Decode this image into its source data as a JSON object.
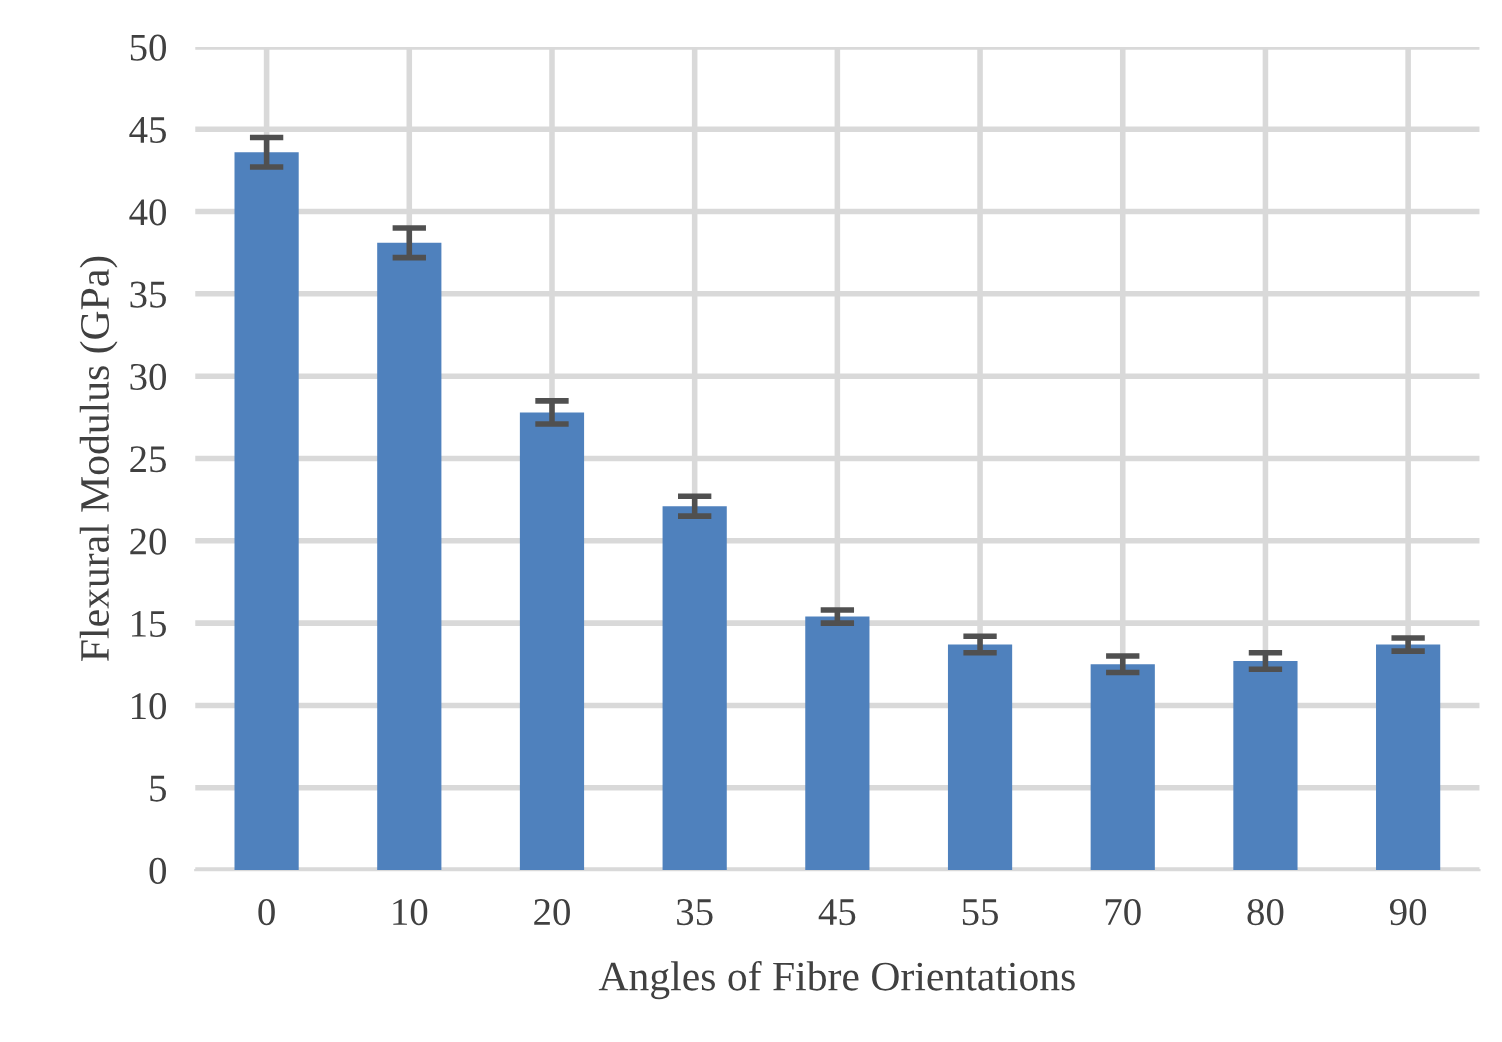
{
  "chart_data": {
    "type": "bar",
    "xlabel": "Angles of Fibre Orientations",
    "ylabel": "Flexural Modulus (GPa)",
    "categories": [
      "0",
      "10",
      "20",
      "35",
      "45",
      "55",
      "70",
      "80",
      "90"
    ],
    "values": [
      43.6,
      38.1,
      27.8,
      22.1,
      15.4,
      13.7,
      12.5,
      12.7,
      13.7
    ],
    "errors": [
      0.9,
      0.9,
      0.7,
      0.6,
      0.4,
      0.5,
      0.5,
      0.5,
      0.4
    ],
    "color": "#4f81bd",
    "ylim": [
      0,
      50
    ],
    "yticks": [
      0,
      5,
      10,
      15,
      20,
      25,
      30,
      35,
      40,
      45,
      50
    ],
    "grid": true
  }
}
